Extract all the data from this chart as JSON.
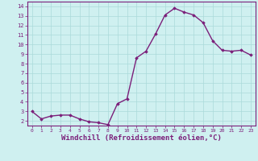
{
  "x": [
    0,
    1,
    2,
    3,
    4,
    5,
    6,
    7,
    8,
    9,
    10,
    11,
    12,
    13,
    14,
    15,
    16,
    17,
    18,
    19,
    20,
    21,
    22,
    23
  ],
  "y": [
    3.0,
    2.2,
    2.5,
    2.6,
    2.6,
    2.2,
    1.9,
    1.8,
    1.6,
    3.8,
    4.3,
    8.6,
    9.3,
    11.1,
    13.1,
    13.8,
    13.4,
    13.1,
    12.3,
    10.4,
    9.4,
    9.3,
    9.4,
    8.9
  ],
  "line_color": "#7B1F7A",
  "marker": "D",
  "marker_size": 1.8,
  "bg_color": "#cff0f0",
  "grid_color": "#aadada",
  "axis_label_color": "#7B1F7A",
  "tick_color": "#7B1F7A",
  "xlabel": "Windchill (Refroidissement éolien,°C)",
  "xlabel_fontsize": 6.5,
  "ytick_labels": [
    "2",
    "3",
    "4",
    "5",
    "6",
    "7",
    "8",
    "9",
    "10",
    "11",
    "12",
    "13",
    "14"
  ],
  "ytick_values": [
    2,
    3,
    4,
    5,
    6,
    7,
    8,
    9,
    10,
    11,
    12,
    13,
    14
  ],
  "xlim": [
    -0.5,
    23.5
  ],
  "ylim": [
    1.5,
    14.5
  ],
  "spine_color": "#7B1F7A",
  "line_width": 1.0
}
